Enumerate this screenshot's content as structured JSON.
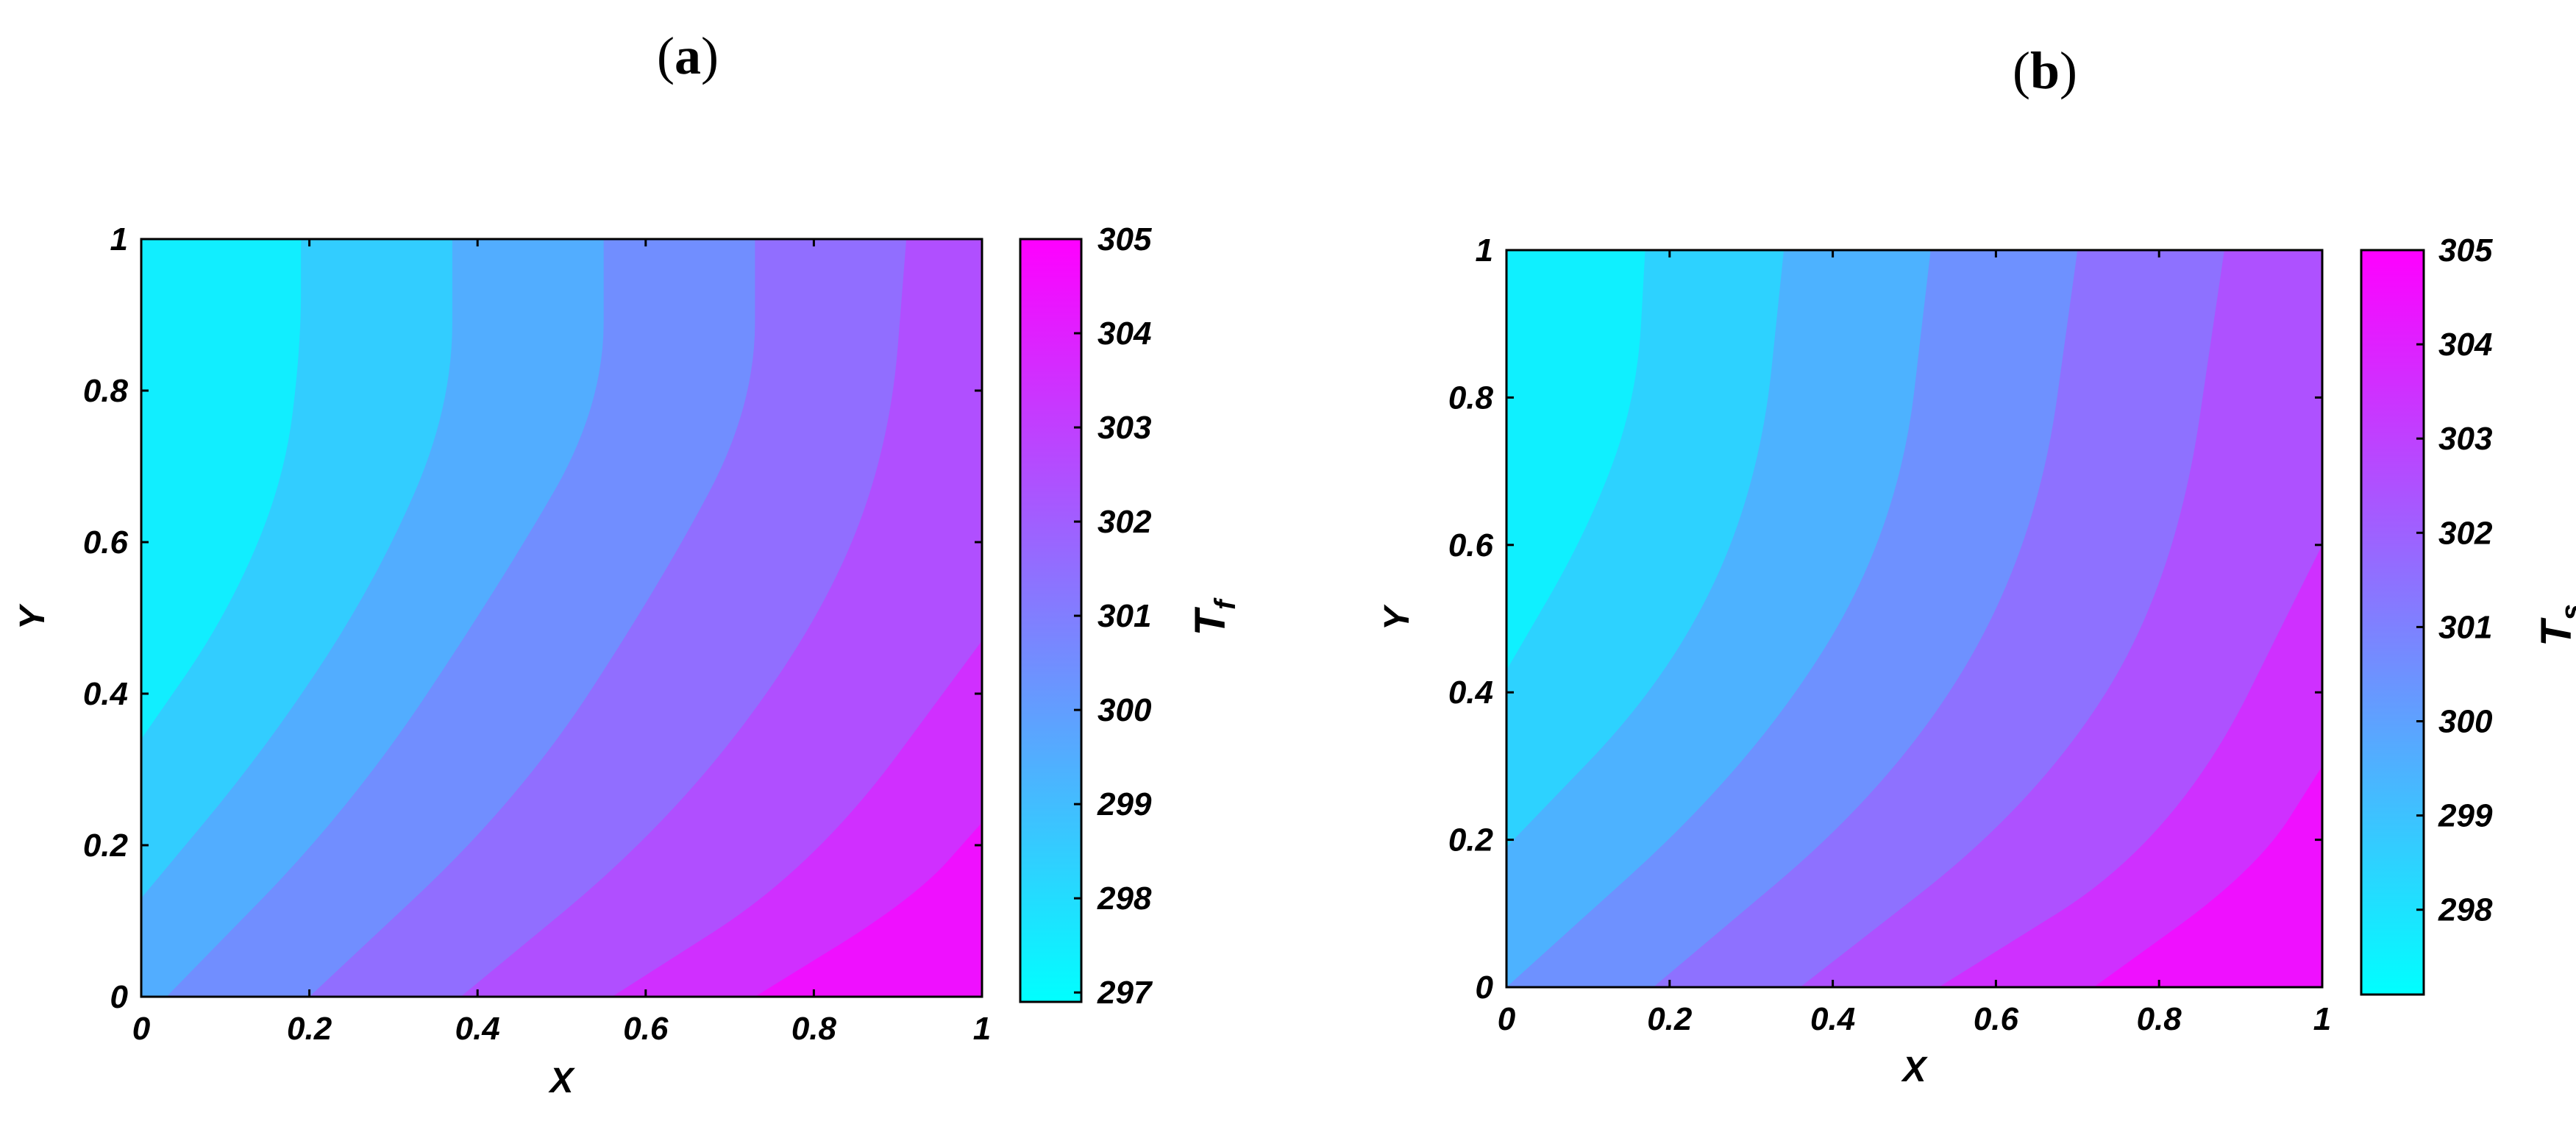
{
  "chart_data": [
    {
      "type": "heatmap",
      "panel_label": "a",
      "xlabel": "X",
      "ylabel": "Y",
      "xlim": [
        0,
        1
      ],
      "ylim": [
        0,
        1
      ],
      "x_ticks": [
        "0",
        "0.2",
        "0.4",
        "0.6",
        "0.8",
        "1"
      ],
      "y_ticks": [
        "0",
        "0.2",
        "0.4",
        "0.6",
        "0.8",
        "1"
      ],
      "colorbar": {
        "label": "T",
        "label_sub": "f",
        "range": [
          296.9,
          305
        ],
        "ticks": [
          "297",
          "298",
          "299",
          "300",
          "301",
          "302",
          "303",
          "304",
          "305"
        ],
        "colormap": "cool"
      },
      "contour_levels": [
        298,
        299,
        300,
        301,
        302,
        303,
        304
      ],
      "boundaries": [
        {
          "level": 298,
          "points": [
            [
              0.0,
              0.34
            ],
            [
              0.1,
              0.5
            ],
            [
              0.17,
              0.68
            ],
            [
              0.19,
              0.86
            ],
            [
              0.19,
              1.0
            ]
          ]
        },
        {
          "level": 299,
          "points": [
            [
              0.0,
              0.13
            ],
            [
              0.15,
              0.33
            ],
            [
              0.28,
              0.55
            ],
            [
              0.37,
              0.78
            ],
            [
              0.37,
              1.0
            ]
          ]
        },
        {
          "level": 300,
          "points": [
            [
              0.03,
              0.0
            ],
            [
              0.25,
              0.25
            ],
            [
              0.43,
              0.55
            ],
            [
              0.55,
              0.78
            ],
            [
              0.55,
              1.0
            ]
          ]
        },
        {
          "level": 301,
          "points": [
            [
              0.2,
              0.0
            ],
            [
              0.45,
              0.26
            ],
            [
              0.62,
              0.55
            ],
            [
              0.73,
              0.78
            ],
            [
              0.73,
              1.0
            ]
          ]
        },
        {
          "level": 302,
          "points": [
            [
              0.38,
              0.0
            ],
            [
              0.62,
              0.22
            ],
            [
              0.8,
              0.48
            ],
            [
              0.89,
              0.72
            ],
            [
              0.91,
              1.0
            ]
          ]
        },
        {
          "level": 303,
          "points": [
            [
              0.56,
              0.0
            ],
            [
              0.8,
              0.17
            ],
            [
              1.0,
              0.47
            ]
          ]
        },
        {
          "level": 304,
          "points": [
            [
              0.73,
              0.0
            ],
            [
              0.92,
              0.13
            ],
            [
              1.0,
              0.23
            ]
          ]
        }
      ]
    },
    {
      "type": "heatmap",
      "panel_label": "b",
      "xlabel": "X",
      "ylabel": "Y",
      "xlim": [
        0,
        1
      ],
      "ylim": [
        0,
        1
      ],
      "x_ticks": [
        "0",
        "0.2",
        "0.4",
        "0.6",
        "0.8",
        "1"
      ],
      "y_ticks": [
        "0",
        "0.2",
        "0.4",
        "0.6",
        "0.8",
        "1"
      ],
      "colorbar": {
        "label": "T",
        "label_sub": "s",
        "range": [
          297.1,
          305
        ],
        "ticks": [
          "298",
          "299",
          "300",
          "301",
          "302",
          "303",
          "304",
          "305"
        ],
        "colormap": "cool"
      },
      "contour_levels": [
        298,
        299,
        300,
        301,
        302,
        303,
        304
      ],
      "boundaries": [
        {
          "level": 298,
          "points": [
            [
              0.0,
              0.43
            ],
            [
              0.1,
              0.62
            ],
            [
              0.16,
              0.8
            ],
            [
              0.17,
              1.0
            ]
          ]
        },
        {
          "level": 299,
          "points": [
            [
              0.0,
              0.19
            ],
            [
              0.2,
              0.42
            ],
            [
              0.31,
              0.68
            ],
            [
              0.34,
              1.0
            ]
          ]
        },
        {
          "level": 300,
          "points": [
            [
              0.0,
              0.0
            ],
            [
              0.3,
              0.3
            ],
            [
              0.48,
              0.62
            ],
            [
              0.52,
              1.0
            ]
          ]
        },
        {
          "level": 301,
          "points": [
            [
              0.18,
              0.0
            ],
            [
              0.48,
              0.28
            ],
            [
              0.65,
              0.6
            ],
            [
              0.7,
              1.0
            ]
          ]
        },
        {
          "level": 302,
          "points": [
            [
              0.36,
              0.0
            ],
            [
              0.65,
              0.25
            ],
            [
              0.82,
              0.55
            ],
            [
              0.88,
              1.0
            ]
          ]
        },
        {
          "level": 303,
          "points": [
            [
              0.53,
              0.0
            ],
            [
              0.82,
              0.2
            ],
            [
              1.0,
              0.6
            ]
          ]
        },
        {
          "level": 304,
          "points": [
            [
              0.72,
              0.0
            ],
            [
              0.92,
              0.16
            ],
            [
              1.0,
              0.3
            ]
          ]
        }
      ]
    }
  ]
}
